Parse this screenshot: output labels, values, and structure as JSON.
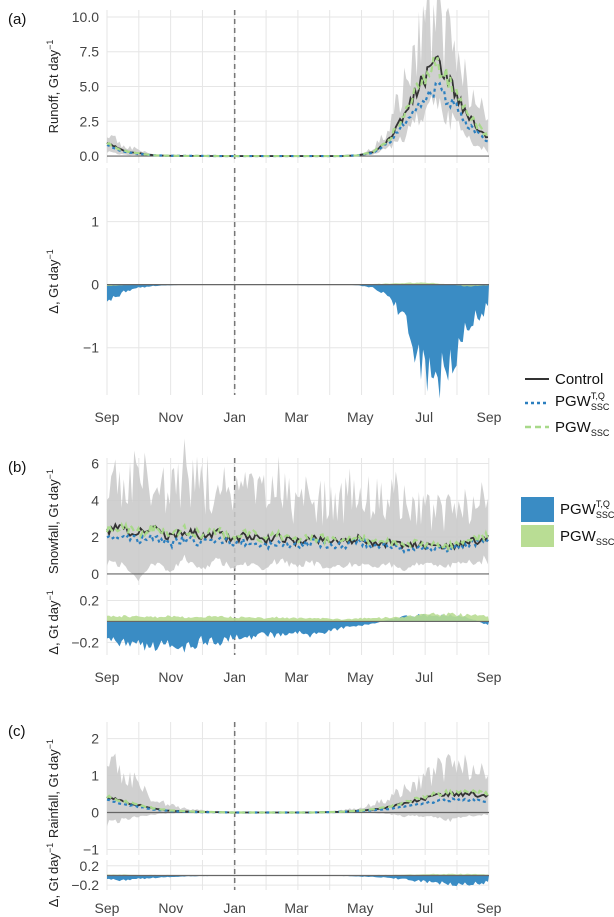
{
  "months": [
    "Sep",
    "Nov",
    "Jan",
    "Mar",
    "May",
    "Jul",
    "Sep"
  ],
  "colors": {
    "control": "#333333",
    "pgwtq": "#2b7fbf",
    "pgwssc": "#a8d98a",
    "delta_tq": "#3a8cc4",
    "delta_ssc": "#b9dd94",
    "envelope": "#c8c8c8",
    "grid": "#e6e6e6"
  },
  "legend_lines": {
    "control": "Control",
    "pgwtq_base": "PGW",
    "pgwtq_sup": "T,Q",
    "pgwtq_sub": "SSC",
    "pgwssc_base": "PGW",
    "pgwssc_sub": "SSC"
  },
  "legend_fills": {
    "tq_base": "PGW",
    "tq_sup": "T,Q",
    "tq_sub": "SSC",
    "ssc_base": "PGW",
    "ssc_sub": "SSC"
  },
  "chart_data": [
    {
      "panel": "a",
      "panel_label": "(a)",
      "type": "line",
      "ylabel_text": "Runoff, Gt day",
      "ylabel_sup": "−1",
      "ylim": [
        -0.5,
        10.5
      ],
      "yticks": [
        0.0,
        2.5,
        5.0,
        7.5,
        10.0
      ],
      "ytick_labels": [
        "0.0",
        "2.5",
        "5.0",
        "7.5",
        "10.0"
      ],
      "x": [
        0,
        15,
        30,
        45,
        60,
        75,
        90,
        105,
        120,
        135,
        150,
        165,
        180,
        195,
        210,
        225,
        240,
        255,
        270,
        285,
        300,
        315,
        330,
        345,
        365
      ],
      "series": [
        {
          "name": "Control",
          "values": [
            0.9,
            0.4,
            0.2,
            0.05,
            0.02,
            0.01,
            0.01,
            0,
            0,
            0,
            0,
            0,
            0,
            0,
            0,
            0,
            0.05,
            0.3,
            1.2,
            3.0,
            5.3,
            6.5,
            5.0,
            2.8,
            1.2
          ]
        },
        {
          "name": "PGW_SSC^T,Q",
          "values": [
            0.8,
            0.35,
            0.15,
            0.05,
            0.02,
            0.01,
            0.01,
            0,
            0,
            0,
            0,
            0,
            0,
            0,
            0,
            0,
            0.05,
            0.25,
            1.0,
            2.5,
            4.0,
            4.9,
            3.8,
            2.2,
            1.0
          ]
        },
        {
          "name": "PGW_SSC",
          "values": [
            0.9,
            0.4,
            0.2,
            0.05,
            0.02,
            0.01,
            0.01,
            0,
            0,
            0,
            0,
            0,
            0,
            0,
            0,
            0,
            0.05,
            0.3,
            1.25,
            3.1,
            5.4,
            6.6,
            5.1,
            2.9,
            1.25
          ]
        }
      ],
      "envelope_upper": [
        1.6,
        0.8,
        0.4,
        0.1,
        0.03,
        0.02,
        0.01,
        0,
        0,
        0,
        0,
        0,
        0,
        0,
        0,
        0,
        0.1,
        0.6,
        2.2,
        5.0,
        8.4,
        9.5,
        8.0,
        4.8,
        2.6
      ],
      "envelope_lower": [
        0.3,
        0.1,
        0.05,
        0,
        0,
        0,
        0,
        0,
        0,
        0,
        0,
        0,
        0,
        0,
        0,
        0,
        0,
        0.1,
        0.6,
        1.5,
        2.8,
        3.6,
        2.6,
        1.2,
        0.3
      ]
    },
    {
      "panel": "a_delta",
      "type": "area",
      "ylabel_text": "Δ, Gt day",
      "ylabel_sup": "−1",
      "ylim": [
        -1.75,
        1.85
      ],
      "yticks": [
        -1,
        0,
        1
      ],
      "ytick_labels": [
        "−1",
        "0",
        "1"
      ],
      "x": [
        0,
        15,
        30,
        45,
        60,
        75,
        90,
        105,
        120,
        135,
        150,
        165,
        180,
        195,
        210,
        225,
        240,
        255,
        270,
        285,
        300,
        315,
        330,
        345,
        365
      ],
      "series": [
        {
          "name": "PGW_SSC^T,Q",
          "values": [
            -0.3,
            -0.12,
            -0.05,
            -0.02,
            -0.01,
            0,
            0,
            0,
            0,
            0,
            0,
            0,
            0,
            0,
            0,
            0,
            -0.01,
            -0.05,
            -0.2,
            -0.55,
            -1.3,
            -1.55,
            -1.2,
            -0.6,
            -0.35
          ]
        },
        {
          "name": "PGW_SSC",
          "values": [
            -0.02,
            -0.01,
            0,
            0,
            0,
            0,
            0,
            0,
            0,
            0,
            0,
            0,
            0,
            0,
            0,
            0,
            0,
            0.01,
            0.02,
            0.03,
            0.03,
            0.02,
            0,
            -0.03,
            -0.01
          ]
        }
      ]
    },
    {
      "panel": "b",
      "panel_label": "(b)",
      "type": "line",
      "ylabel_text": "Snowfall, Gt day",
      "ylabel_sup": "−1",
      "ylim": [
        -0.6,
        6.3
      ],
      "yticks": [
        0,
        2,
        4,
        6
      ],
      "ytick_labels": [
        "0",
        "2",
        "4",
        "6"
      ],
      "x": [
        0,
        15,
        30,
        45,
        60,
        75,
        90,
        105,
        120,
        135,
        150,
        165,
        180,
        195,
        210,
        225,
        240,
        255,
        270,
        285,
        300,
        315,
        330,
        345,
        365
      ],
      "series": [
        {
          "name": "Control",
          "values": [
            2.3,
            2.5,
            2.2,
            2.4,
            2.0,
            2.3,
            2.1,
            2.2,
            1.9,
            2.1,
            1.8,
            2.0,
            1.7,
            1.9,
            1.8,
            1.7,
            1.9,
            1.6,
            1.7,
            1.5,
            1.6,
            1.4,
            1.5,
            1.7,
            2.0
          ]
        },
        {
          "name": "PGW_SSC^T,Q",
          "values": [
            2.0,
            2.2,
            1.8,
            2.0,
            1.6,
            1.9,
            1.7,
            1.9,
            1.6,
            1.8,
            1.5,
            1.7,
            1.5,
            1.7,
            1.6,
            1.5,
            1.8,
            1.5,
            1.6,
            1.3,
            1.5,
            1.3,
            1.4,
            1.6,
            1.9
          ]
        },
        {
          "name": "PGW_SSC",
          "values": [
            2.4,
            2.6,
            2.3,
            2.5,
            2.1,
            2.4,
            2.2,
            2.3,
            2.0,
            2.2,
            1.9,
            2.1,
            1.8,
            2.0,
            1.9,
            1.8,
            2.0,
            1.7,
            1.8,
            1.6,
            1.7,
            1.5,
            1.6,
            1.8,
            2.1
          ]
        }
      ],
      "envelope_upper": [
        4.8,
        5.2,
        4.9,
        5.3,
        4.2,
        5.8,
        4.6,
        5.0,
        3.9,
        4.6,
        4.0,
        4.8,
        3.7,
        4.4,
        3.8,
        3.9,
        5.0,
        4.2,
        4.5,
        3.6,
        3.4,
        3.2,
        3.5,
        3.6,
        4.2
      ],
      "envelope_lower": [
        0.6,
        0.5,
        -0.3,
        0.7,
        0.1,
        0.9,
        0.2,
        0.8,
        0.3,
        0.6,
        0.2,
        0.8,
        0.4,
        0.7,
        0.3,
        0.4,
        0.6,
        0.3,
        0.5,
        0.2,
        0.6,
        0.4,
        0.5,
        0.6,
        0.8
      ]
    },
    {
      "panel": "b_delta",
      "type": "area",
      "ylabel_text": "Δ, Gt day",
      "ylabel_sup": "−1",
      "ylim": [
        -0.32,
        0.3
      ],
      "yticks": [
        -0.2,
        0.2
      ],
      "ytick_labels": [
        "−0.2",
        "0.2"
      ],
      "x": [
        0,
        15,
        30,
        45,
        60,
        75,
        90,
        105,
        120,
        135,
        150,
        165,
        180,
        195,
        210,
        225,
        240,
        255,
        270,
        285,
        300,
        315,
        330,
        345,
        365
      ],
      "series": [
        {
          "name": "PGW_SSC^T,Q",
          "values": [
            -0.18,
            -0.2,
            -0.22,
            -0.24,
            -0.2,
            -0.26,
            -0.18,
            -0.2,
            -0.14,
            -0.16,
            -0.12,
            -0.15,
            -0.11,
            -0.13,
            -0.1,
            -0.06,
            -0.04,
            -0.02,
            0.02,
            0.05,
            0.06,
            0.05,
            0.06,
            0.04,
            -0.04
          ]
        },
        {
          "name": "PGW_SSC",
          "values": [
            0.06,
            0.05,
            0.05,
            0.04,
            0.05,
            0.04,
            0.04,
            0.05,
            0.04,
            0.04,
            0.03,
            0.04,
            0.03,
            0.03,
            0.03,
            0.02,
            0.03,
            0.03,
            0.04,
            0.05,
            0.06,
            0.07,
            0.07,
            0.06,
            0.05
          ]
        }
      ]
    },
    {
      "panel": "c",
      "panel_label": "(c)",
      "type": "line",
      "ylabel_text": "Rainfall, Gt day",
      "ylabel_sup": "−1",
      "ylim": [
        -1.15,
        2.45
      ],
      "yticks": [
        -1,
        0,
        1,
        2
      ],
      "ytick_labels": [
        "−1",
        "0",
        "1",
        "2"
      ],
      "x": [
        0,
        15,
        30,
        45,
        60,
        75,
        90,
        105,
        120,
        135,
        150,
        165,
        180,
        195,
        210,
        225,
        240,
        255,
        270,
        285,
        300,
        315,
        330,
        345,
        365
      ],
      "series": [
        {
          "name": "Control",
          "values": [
            0.4,
            0.3,
            0.2,
            0.1,
            0.05,
            0.03,
            0.02,
            0.01,
            0,
            0,
            0,
            0,
            0,
            0,
            0.01,
            0.02,
            0.05,
            0.08,
            0.15,
            0.25,
            0.35,
            0.45,
            0.5,
            0.5,
            0.45
          ]
        },
        {
          "name": "PGW_SSC^T,Q",
          "values": [
            0.35,
            0.25,
            0.15,
            0.08,
            0.04,
            0.02,
            0.01,
            0.01,
            0,
            0,
            0,
            0,
            0,
            0,
            0.01,
            0.02,
            0.04,
            0.06,
            0.1,
            0.18,
            0.25,
            0.3,
            0.35,
            0.35,
            0.3
          ]
        },
        {
          "name": "PGW_SSC",
          "values": [
            0.42,
            0.32,
            0.22,
            0.11,
            0.06,
            0.03,
            0.02,
            0.01,
            0,
            0,
            0,
            0,
            0,
            0,
            0.01,
            0.02,
            0.05,
            0.09,
            0.17,
            0.28,
            0.4,
            0.5,
            0.55,
            0.55,
            0.5
          ]
        }
      ],
      "envelope_upper": [
        1.5,
        1.1,
        0.7,
        0.35,
        0.2,
        0.1,
        0.06,
        0.03,
        0.02,
        0.01,
        0.01,
        0.01,
        0.01,
        0.02,
        0.03,
        0.06,
        0.12,
        0.25,
        0.4,
        0.6,
        0.8,
        1.1,
        1.3,
        1.2,
        1.0
      ],
      "envelope_lower": [
        -0.3,
        -0.2,
        -0.1,
        -0.05,
        -0.02,
        -0.01,
        0,
        0,
        0,
        0,
        0,
        0,
        0,
        0,
        0,
        0,
        0,
        -0.02,
        -0.05,
        -0.1,
        -0.1,
        -0.15,
        -0.2,
        -0.1,
        -0.05
      ]
    },
    {
      "panel": "c_delta",
      "type": "area",
      "ylabel_text": "Δ, Gt day",
      "ylabel_sup": "−1",
      "ylim": [
        -0.3,
        0.32
      ],
      "yticks": [
        -0.2,
        0.2
      ],
      "ytick_labels": [
        "−0.2",
        "0.2"
      ],
      "x": [
        0,
        15,
        30,
        45,
        60,
        75,
        90,
        105,
        120,
        135,
        150,
        165,
        180,
        195,
        210,
        225,
        240,
        255,
        270,
        285,
        300,
        315,
        330,
        345,
        365
      ],
      "series": [
        {
          "name": "PGW_SSC^T,Q",
          "values": [
            -0.08,
            -0.1,
            -0.07,
            -0.05,
            -0.03,
            -0.02,
            -0.01,
            -0.01,
            0,
            0,
            0,
            0,
            0,
            0,
            0,
            -0.01,
            -0.02,
            -0.03,
            -0.05,
            -0.08,
            -0.12,
            -0.15,
            -0.18,
            -0.17,
            -0.14
          ]
        },
        {
          "name": "PGW_SSC",
          "values": [
            0.02,
            0.02,
            0.01,
            0.01,
            0.01,
            0,
            0,
            0,
            0,
            0,
            0,
            0,
            0,
            0,
            0,
            0,
            0,
            0.01,
            0.01,
            0.02,
            0.02,
            0.03,
            0.03,
            0.03,
            0.02
          ]
        }
      ]
    }
  ]
}
